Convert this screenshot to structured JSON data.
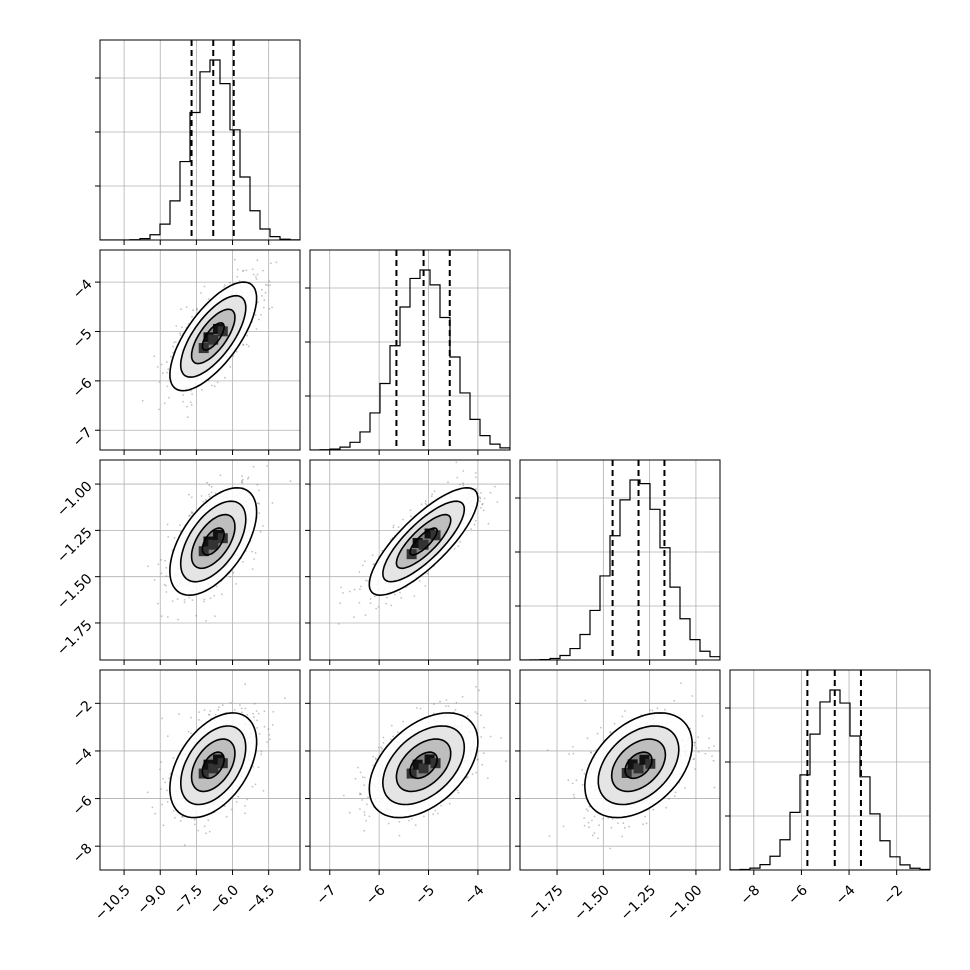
{
  "chart_data": {
    "type": "corner",
    "grid": true,
    "parameters": [
      {
        "ticks": [
          -10.5,
          -9.0,
          -7.5,
          -6.0,
          -4.5
        ],
        "tick_labels": [
          "−10.5",
          "−9.0",
          "−7.5",
          "−6.0",
          "−4.5"
        ],
        "range": [
          -11.5,
          -3.2
        ],
        "mean": -6.8,
        "sd": 0.9,
        "quantiles": [
          -7.7,
          -6.8,
          -5.95
        ]
      },
      {
        "ticks": [
          -7,
          -6,
          -5,
          -4
        ],
        "tick_labels": [
          "−7",
          "−6",
          "−5",
          "−4"
        ],
        "range": [
          -7.4,
          -3.35
        ],
        "mean": -5.1,
        "sd": 0.55,
        "quantiles": [
          -5.65,
          -5.1,
          -4.57
        ]
      },
      {
        "ticks": [
          -1.75,
          -1.5,
          -1.25,
          -1.0
        ],
        "tick_labels": [
          "−1.75",
          "−1.50",
          "−1.25",
          "−1.00"
        ],
        "range": [
          -1.95,
          -0.87
        ],
        "mean": -1.31,
        "sd": 0.145,
        "quantiles": [
          -1.45,
          -1.31,
          -1.17
        ]
      },
      {
        "ticks": [
          -8,
          -6,
          -4,
          -2
        ],
        "tick_labels": [
          "−8",
          "−6",
          "−4",
          "−2"
        ],
        "range": [
          -9.0,
          -0.6
        ],
        "mean": -4.6,
        "sd": 1.1,
        "quantiles": [
          -5.75,
          -4.6,
          -3.5
        ]
      }
    ],
    "correlations": [
      [
        1.0,
        0.7,
        0.55,
        0.45
      ],
      [
        0.7,
        1.0,
        0.8,
        0.45
      ],
      [
        0.55,
        0.8,
        1.0,
        0.4
      ],
      [
        0.45,
        0.45,
        0.4,
        1.0
      ]
    ],
    "hist_bins": 20,
    "contour_levels_sigma": [
      0.5,
      1.0,
      1.5,
      2.0
    ]
  }
}
